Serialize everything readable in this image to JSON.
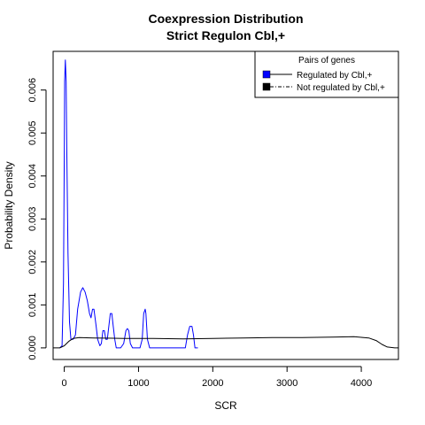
{
  "chart_data": {
    "type": "line",
    "title": "Coexpression Distribution",
    "subtitle": "Strict Regulon Cbl,+",
    "xlabel": "SCR",
    "ylabel": "Probability Density",
    "xlim": [
      -150,
      4500
    ],
    "ylim": [
      -0.00027,
      0.0069
    ],
    "x_ticks": [
      0,
      1000,
      2000,
      3000,
      4000
    ],
    "y_ticks": [
      0.0,
      0.001,
      0.002,
      0.003,
      0.004,
      0.005,
      0.006
    ],
    "y_tick_labels": [
      "0.000",
      "0.001",
      "0.002",
      "0.003",
      "0.004",
      "0.005",
      "0.006"
    ],
    "legend": {
      "title": "Pairs of genes",
      "position": "top-right",
      "entries": [
        "Regulated by  Cbl,+",
        "Not regulated by  Cbl,+"
      ]
    },
    "series": [
      {
        "name": "Regulated by  Cbl,+",
        "color": "#0000ff",
        "points": [
          [
            -60,
            0.0
          ],
          [
            -30,
            5e-05
          ],
          [
            -10,
            0.0015
          ],
          [
            0,
            0.0045
          ],
          [
            5,
            0.0062
          ],
          [
            15,
            0.0067
          ],
          [
            25,
            0.0062
          ],
          [
            35,
            0.0045
          ],
          [
            50,
            0.0022
          ],
          [
            70,
            0.0006
          ],
          [
            90,
            0.0002
          ],
          [
            120,
            0.0002
          ],
          [
            150,
            0.0003
          ],
          [
            180,
            0.0009
          ],
          [
            220,
            0.0013
          ],
          [
            250,
            0.0014
          ],
          [
            280,
            0.0013
          ],
          [
            310,
            0.0011
          ],
          [
            340,
            0.0008
          ],
          [
            360,
            0.0007
          ],
          [
            380,
            0.0009
          ],
          [
            400,
            0.0009
          ],
          [
            430,
            0.0005
          ],
          [
            450,
            0.0002
          ],
          [
            480,
            5e-05
          ],
          [
            500,
            0.0001
          ],
          [
            520,
            0.0004
          ],
          [
            540,
            0.0004
          ],
          [
            560,
            0.0002
          ],
          [
            580,
            0.0002
          ],
          [
            600,
            0.0005
          ],
          [
            620,
            0.0008
          ],
          [
            640,
            0.0008
          ],
          [
            660,
            0.0005
          ],
          [
            680,
            0.0002
          ],
          [
            700,
            0.0
          ],
          [
            760,
            0.0
          ],
          [
            800,
            0.0001
          ],
          [
            830,
            0.0004
          ],
          [
            850,
            0.00045
          ],
          [
            870,
            0.0004
          ],
          [
            890,
            0.0001
          ],
          [
            920,
            0.0
          ],
          [
            1020,
            0.0
          ],
          [
            1050,
            0.0002
          ],
          [
            1070,
            0.0008
          ],
          [
            1090,
            0.0009
          ],
          [
            1100,
            0.0008
          ],
          [
            1120,
            0.0002
          ],
          [
            1150,
            0.0
          ],
          [
            1630,
            0.0
          ],
          [
            1660,
            0.0003
          ],
          [
            1690,
            0.0005
          ],
          [
            1720,
            0.0005
          ],
          [
            1740,
            0.0003
          ],
          [
            1760,
            0.0
          ],
          [
            1800,
            0.0
          ]
        ]
      },
      {
        "name": "Not regulated by  Cbl,+",
        "color": "#000000",
        "points": [
          [
            -150,
            0.0
          ],
          [
            -60,
            0.0
          ],
          [
            0,
            5e-05
          ],
          [
            60,
            0.00015
          ],
          [
            120,
            0.00022
          ],
          [
            200,
            0.00024
          ],
          [
            400,
            0.00023
          ],
          [
            800,
            0.00022
          ],
          [
            1200,
            0.00022
          ],
          [
            1600,
            0.00021
          ],
          [
            2000,
            0.00022
          ],
          [
            2400,
            0.00023
          ],
          [
            2800,
            0.00024
          ],
          [
            3200,
            0.00024
          ],
          [
            3600,
            0.00025
          ],
          [
            3900,
            0.00026
          ],
          [
            4100,
            0.00023
          ],
          [
            4200,
            0.00017
          ],
          [
            4280,
            8e-05
          ],
          [
            4350,
            2e-05
          ],
          [
            4450,
            0.0
          ],
          [
            4500,
            0.0
          ]
        ]
      }
    ]
  }
}
